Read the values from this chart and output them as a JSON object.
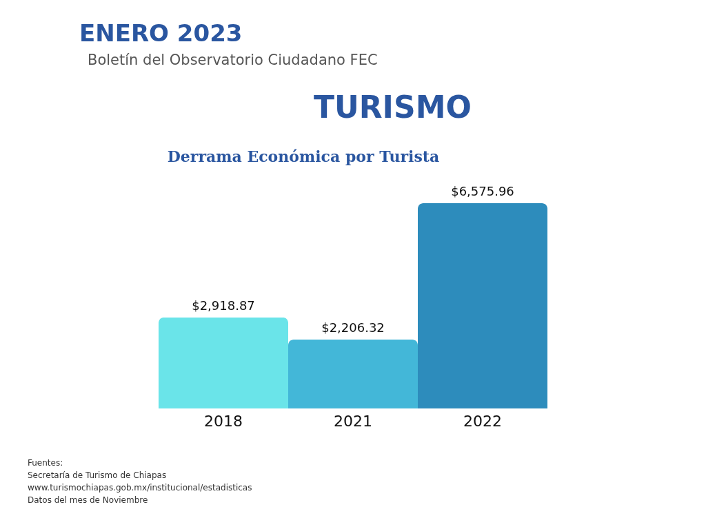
{
  "chart_data": {
    "type": "bar",
    "title": "ENERO 2023",
    "subtitle": "Boletín del Observatorio Ciudadano FEC",
    "categories": [
      "2018",
      "2021",
      "2022"
    ],
    "values": [
      2918.87,
      2206.32,
      6575.96
    ],
    "value_labels": [
      "$2,918.87",
      "$2,206.32",
      "$6,575.96"
    ],
    "colors": [
      "#6ae4e9",
      "#43b7d8",
      "#2d8cbc"
    ],
    "annotations": [
      "TURISMO",
      "Derrama Económica por Turista",
      "Fuentes:",
      "Secretaría de Turismo de Chiapas",
      "www.turismochiapas.gob.mx/institucional/estadisticas",
      "Datos del mes de Noviembre"
    ]
  }
}
